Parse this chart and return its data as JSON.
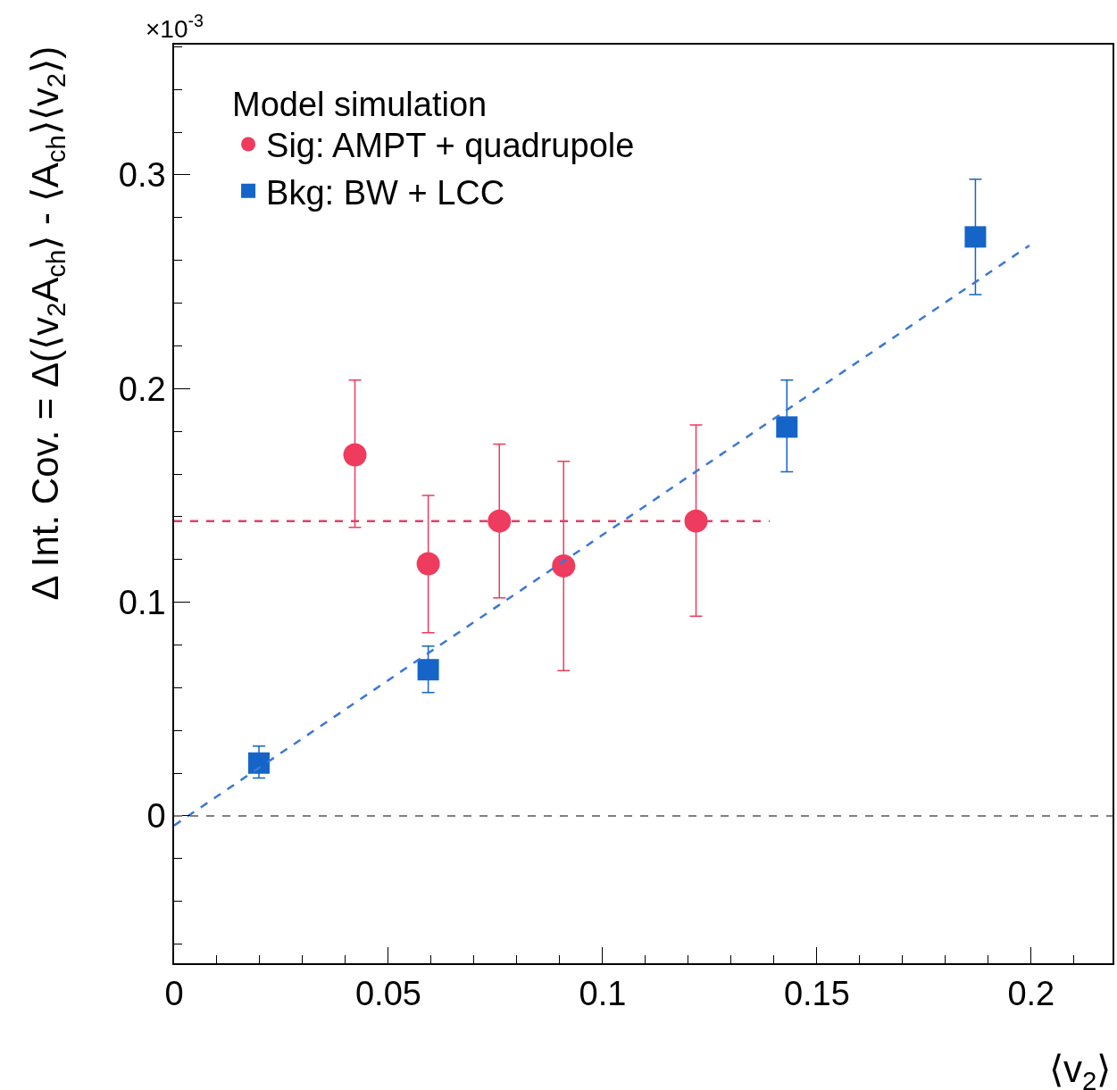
{
  "chart_data": {
    "type": "scatter",
    "xlabel": "⟨v$_{2}$⟩",
    "ylabel": "Δ Int. Cov. = Δ(⟨v$_{2}$A$_{ch}$⟩ - ⟨A$_{ch}$⟩⟨v$_{2}$⟩)",
    "legend_title": "Model simulation",
    "annotations": [
      "×10$^{-3}$"
    ],
    "xlim": [
      0,
      0.219
    ],
    "xticks": [
      0,
      0.05,
      0.1,
      0.15,
      0.2
    ],
    "ylim": [
      -0.069,
      0.361
    ],
    "yticks": [
      0,
      0.1,
      0.2,
      0.3
    ],
    "legend": "top left",
    "series": [
      {
        "name": "Sig: AMPT + quadrupole",
        "color": "#ef3b5d",
        "marker": "circle",
        "x": [
          0.0422,
          0.0593,
          0.0759,
          0.0909,
          0.1218
        ],
        "values": [
          0.169,
          0.118,
          0.138,
          0.117,
          0.138
        ],
        "errors": [
          [
            0.135,
            0.204
          ],
          [
            0.0857,
            0.15
          ],
          [
            0.102,
            0.174
          ],
          [
            0.068,
            0.166
          ],
          [
            0.0935,
            0.183
          ]
        ]
      },
      {
        "name": "Bkg: BW + LCC",
        "color": "#1565c8",
        "marker": "square",
        "x": [
          0.0198,
          0.0593,
          0.143,
          0.187
        ],
        "values": [
          0.0247,
          0.0684,
          0.182,
          0.271
        ],
        "errors": [
          [
            0.0177,
            0.0326
          ],
          [
            0.0577,
            0.0795
          ],
          [
            0.161,
            0.204
          ],
          [
            0.244,
            0.298
          ]
        ]
      },
      {
        "type": "line",
        "color": "#e0406a",
        "line_style": "dashed",
        "marker": "none",
        "x": [
          0,
          0.139
        ],
        "values": [
          0.138,
          0.138
        ]
      },
      {
        "type": "line",
        "color": "#3a78d4",
        "line_style": "dashed",
        "marker": "none",
        "x": [
          0,
          0.1996
        ],
        "values": [
          -0.0045,
          0.267
        ]
      }
    ],
    "ref_lines": [
      {
        "axis": "y",
        "value": 0,
        "color": "#808080",
        "line_style": "dashed"
      }
    ]
  }
}
